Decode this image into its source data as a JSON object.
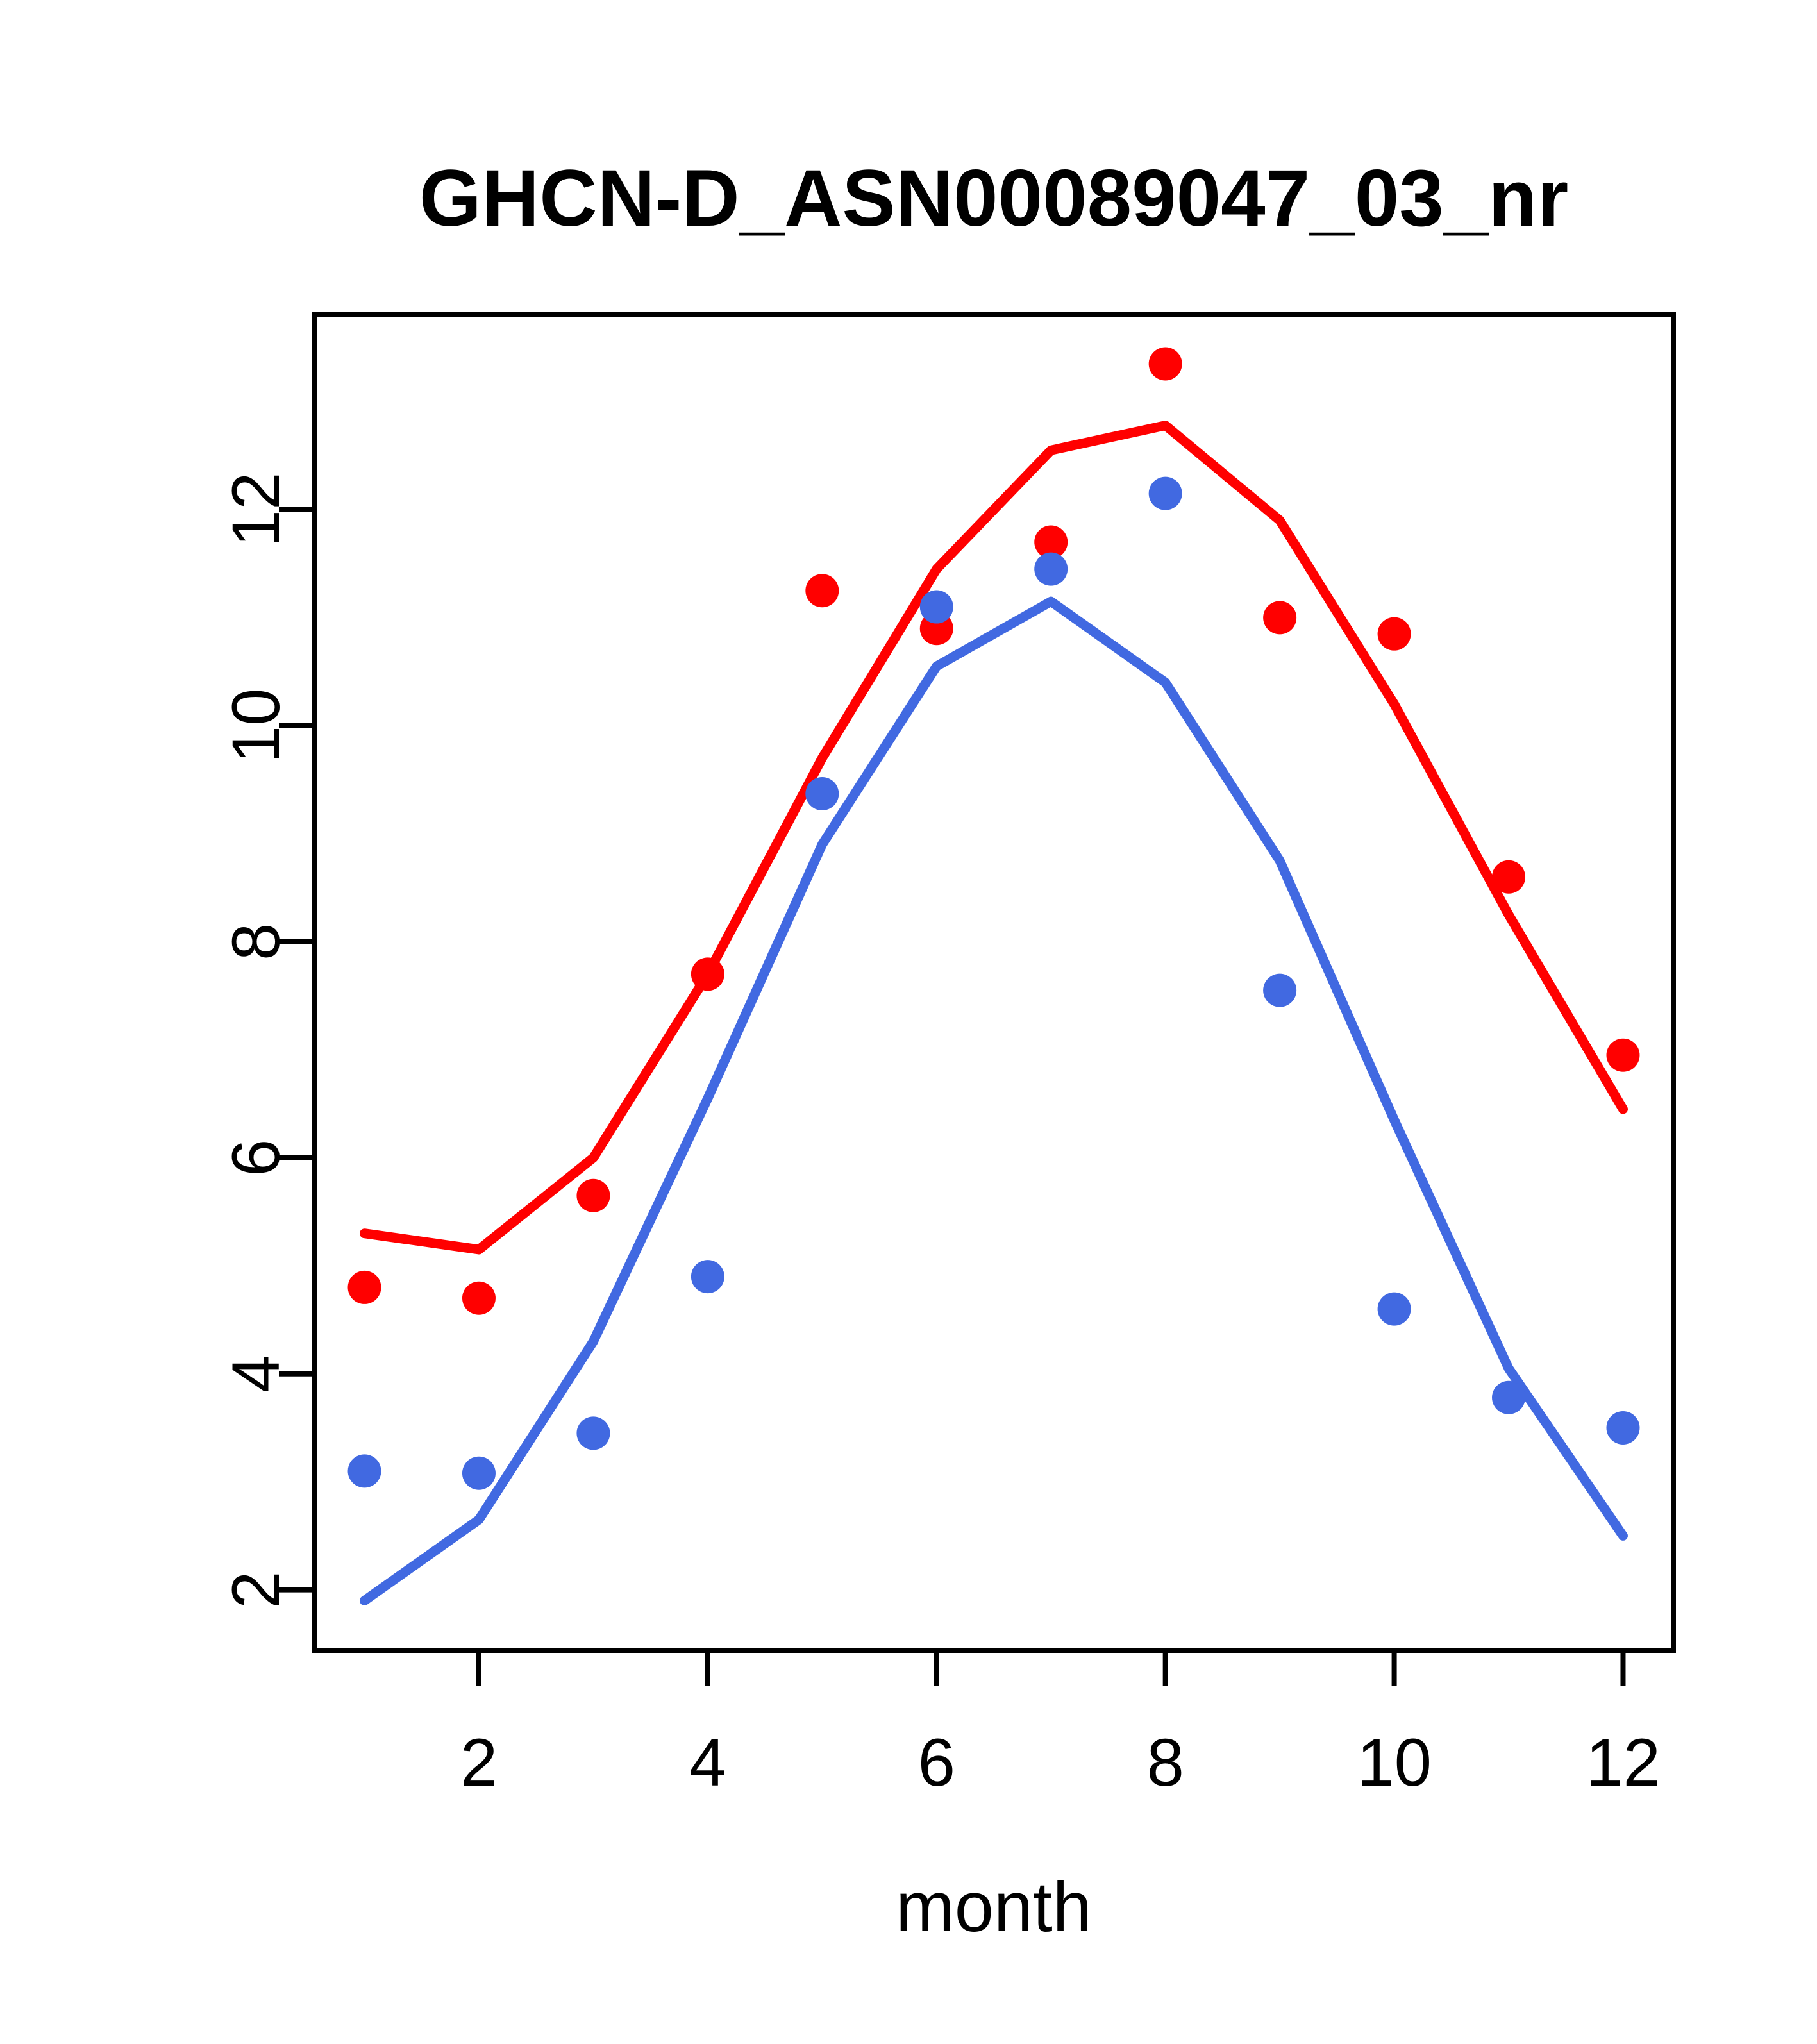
{
  "chart_data": {
    "type": "line",
    "title": "GHCN-D_ASN00089047_03_nr",
    "xlabel": "month",
    "ylabel": "",
    "x": [
      1,
      2,
      3,
      4,
      5,
      6,
      7,
      8,
      9,
      10,
      11,
      12
    ],
    "xticks": [
      2,
      4,
      6,
      8,
      10,
      12
    ],
    "yticks": [
      2,
      4,
      6,
      8,
      10,
      12
    ],
    "xlim": [
      0.56,
      12.44
    ],
    "ylim": [
      1.44,
      13.81
    ],
    "grid": false,
    "legend": "none",
    "colors": {
      "red": "#FF0000",
      "blue": "#4169E1",
      "axis": "#000000",
      "background": "#FFFFFF"
    },
    "series": [
      {
        "name": "red-line",
        "type": "line",
        "color_key": "red",
        "values": [
          5.3,
          5.15,
          6.0,
          7.7,
          9.7,
          11.45,
          12.55,
          12.78,
          11.9,
          10.2,
          8.25,
          6.45
        ]
      },
      {
        "name": "blue-line",
        "type": "line",
        "color_key": "blue",
        "values": [
          1.9,
          2.65,
          4.3,
          6.55,
          8.9,
          10.55,
          11.15,
          10.4,
          8.75,
          6.35,
          4.05,
          2.5
        ]
      },
      {
        "name": "red-points",
        "type": "scatter",
        "color_key": "red",
        "values": [
          4.8,
          4.7,
          5.65,
          7.7,
          11.25,
          10.9,
          11.7,
          13.35,
          11.0,
          10.85,
          8.6,
          6.95
        ]
      },
      {
        "name": "blue-points",
        "type": "scatter",
        "color_key": "blue",
        "values": [
          3.1,
          3.08,
          3.45,
          4.9,
          9.37,
          11.1,
          11.45,
          12.15,
          7.55,
          4.6,
          3.78,
          3.5
        ]
      }
    ]
  }
}
